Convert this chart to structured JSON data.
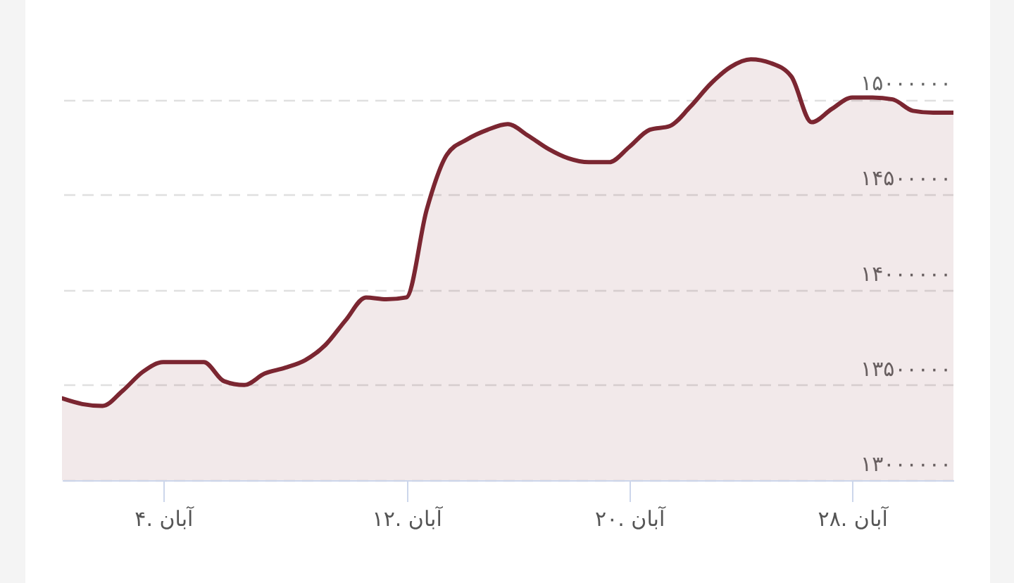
{
  "chart_data": {
    "type": "area",
    "categories": [
      null,
      null,
      null,
      null,
      null,
      "آبان .۴",
      null,
      null,
      null,
      null,
      null,
      null,
      null,
      null,
      null,
      null,
      null,
      "آبان .۱۲",
      null,
      null,
      null,
      null,
      null,
      null,
      null,
      null,
      null,
      null,
      "آبان .۲۰",
      null,
      null,
      null,
      null,
      null,
      null,
      null,
      null,
      null,
      null,
      "آبان .۲۸",
      null,
      null,
      null,
      null,
      null
    ],
    "series": [
      {
        "color": "#7b2631",
        "values": [
          13430000,
          13400000,
          13390000,
          13470000,
          13570000,
          13620000,
          13620000,
          13620000,
          13520000,
          13500000,
          13560000,
          13590000,
          13630000,
          13710000,
          13840000,
          13960000,
          13950000,
          13960000,
          14420000,
          14710000,
          14790000,
          14840000,
          14870000,
          14810000,
          14740000,
          14690000,
          14670000,
          14670000,
          14750000,
          14840000,
          14860000,
          14960000,
          15080000,
          15170000,
          15210000,
          15190000,
          15120000,
          14880000,
          14950000,
          15010000,
          15010000,
          15000000,
          14940000,
          14930000,
          14930000
        ]
      }
    ],
    "ylim": [
      13000000,
      15300000
    ],
    "yticks": [
      {
        "value": 13000000,
        "label": "۱۳۰۰۰۰۰۰"
      },
      {
        "value": 13500000,
        "label": "۱۳۵۰۰۰۰۰"
      },
      {
        "value": 14000000,
        "label": "۱۴۰۰۰۰۰۰"
      },
      {
        "value": 14500000,
        "label": "۱۴۵۰۰۰۰۰"
      },
      {
        "value": 15000000,
        "label": "۱۵۰۰۰۰۰۰"
      }
    ],
    "grid": "y"
  }
}
